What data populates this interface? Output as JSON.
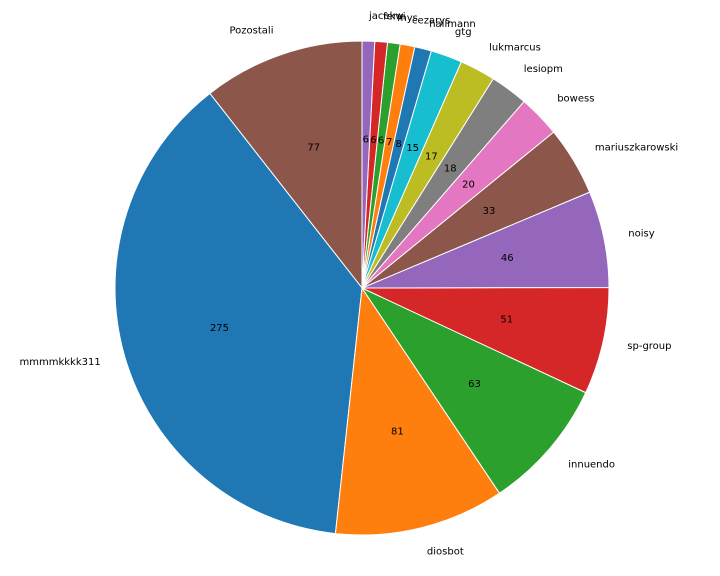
{
  "chart_data": {
    "type": "pie",
    "title": "",
    "direction": "counterclockwise",
    "start_angle_deg": 90,
    "slices": [
      {
        "label": "Pozostali",
        "value": 77,
        "color": "#8c564b"
      },
      {
        "label": "mmmmkkkk311",
        "value": 275,
        "color": "#1f77b4"
      },
      {
        "label": "diosbot",
        "value": 81,
        "color": "#ff7f0e"
      },
      {
        "label": "innuendo",
        "value": 63,
        "color": "#2ca02c"
      },
      {
        "label": "sp-group",
        "value": 51,
        "color": "#d62728"
      },
      {
        "label": "noisy",
        "value": 46,
        "color": "#9467bd"
      },
      {
        "label": "mariuszkarowski",
        "value": 33,
        "color": "#8c564b"
      },
      {
        "label": "bowess",
        "value": 20,
        "color": "#e377c2"
      },
      {
        "label": "lesiopm",
        "value": 18,
        "color": "#7f7f7f"
      },
      {
        "label": "lukmarcus",
        "value": 17,
        "color": "#bcbd22"
      },
      {
        "label": "gtg",
        "value": 15,
        "color": "#17becf"
      },
      {
        "label": "hallmann",
        "value": 8,
        "color": "#1f77b4"
      },
      {
        "label": "cezarys",
        "value": 7,
        "color": "#ff7f0e"
      },
      {
        "label": "mys",
        "value": 6,
        "color": "#2ca02c"
      },
      {
        "label": "fervi",
        "value": 6,
        "color": "#d62728"
      },
      {
        "label": "jacekw",
        "value": 6,
        "color": "#9467bd"
      }
    ]
  }
}
